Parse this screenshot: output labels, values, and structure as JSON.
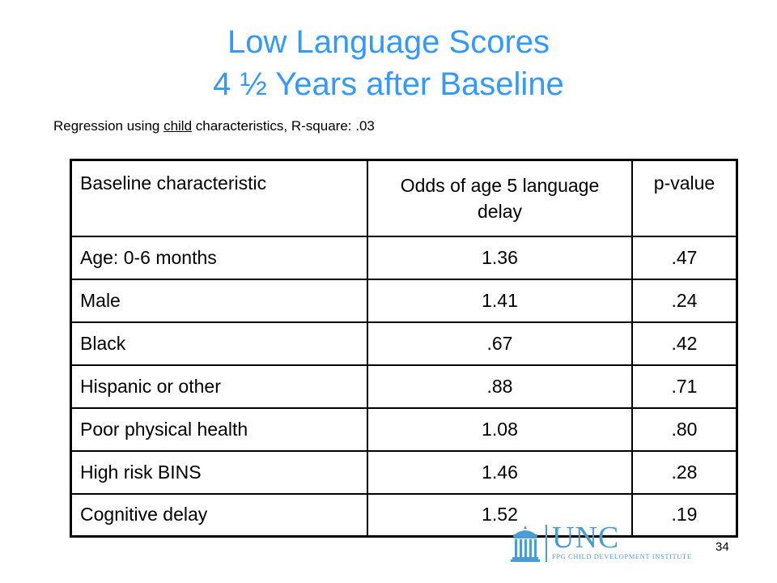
{
  "slide": {
    "title_line1": "Low Language Scores",
    "title_line2": "4 ½ Years after Baseline",
    "subtitle_prefix": "Regression using ",
    "subtitle_underlined": "child",
    "subtitle_suffix": " characteristics, R-square: .03",
    "page_number": "34"
  },
  "table": {
    "headers": [
      "Baseline characteristic",
      "Odds of age 5 language delay",
      "p-value"
    ],
    "rows": [
      {
        "characteristic": "Age: 0-6 months",
        "odds": "1.36",
        "p": ".47"
      },
      {
        "characteristic": "Male",
        "odds": "1.41",
        "p": ".24"
      },
      {
        "characteristic": "Black",
        "odds": ".67",
        "p": ".42"
      },
      {
        "characteristic": "Hispanic or other",
        "odds": ".88",
        "p": ".71"
      },
      {
        "characteristic": "Poor physical health",
        "odds": "1.08",
        "p": ".80"
      },
      {
        "characteristic": "High risk BINS",
        "odds": "1.46",
        "p": ".28"
      },
      {
        "characteristic": "Cognitive delay",
        "odds": "1.52",
        "p": ".19"
      }
    ]
  },
  "logo": {
    "name": "UNC",
    "tagline": "FPG CHILD DEVELOPMENT INSTITUTE",
    "icon": "old-well-icon",
    "color": "#4b9cd3"
  },
  "colors": {
    "title": "#3399ff"
  }
}
